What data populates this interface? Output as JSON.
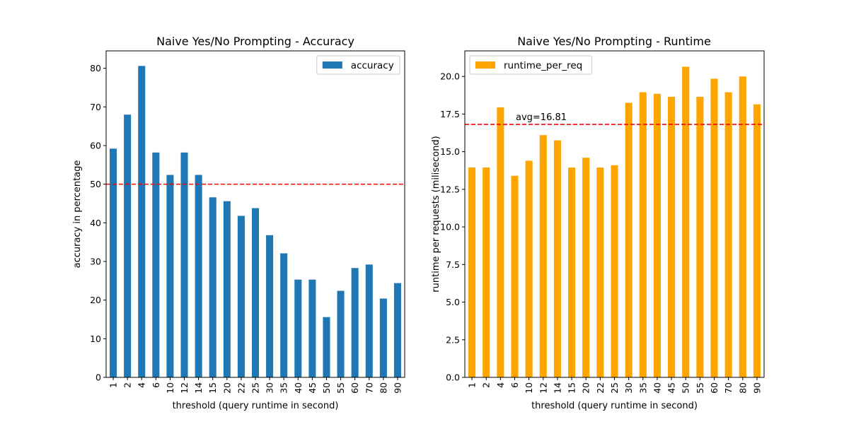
{
  "chart_data": [
    {
      "type": "bar",
      "title": "Naive Yes/No Prompting - Accuracy",
      "xlabel": "threshold (query runtime in second)",
      "ylabel": "accuracy in percentage",
      "categories": [
        "1",
        "2",
        "4",
        "6",
        "10",
        "12",
        "14",
        "15",
        "20",
        "22",
        "25",
        "30",
        "35",
        "40",
        "45",
        "50",
        "55",
        "60",
        "70",
        "80",
        "90"
      ],
      "series": [
        {
          "name": "accuracy",
          "color": "#1f77b4",
          "values": [
            59.2,
            68.0,
            80.6,
            58.2,
            52.4,
            58.2,
            52.4,
            46.6,
            45.6,
            41.8,
            43.8,
            36.8,
            32.1,
            25.3,
            25.3,
            15.6,
            22.4,
            28.3,
            29.2,
            20.4,
            24.4
          ]
        }
      ],
      "ylim": [
        0,
        84.5
      ],
      "yticks": [
        0,
        10,
        20,
        30,
        40,
        50,
        60,
        70,
        80
      ],
      "reference_line": {
        "value": 50,
        "color": "#ff0000",
        "style": "dashed",
        "label": ""
      },
      "legend_position": "upper right",
      "grid": false
    },
    {
      "type": "bar",
      "title": "Naive Yes/No Prompting - Runtime",
      "xlabel": "threshold (query runtime in second)",
      "ylabel": "runtime per requests (milisecond)",
      "categories": [
        "1",
        "2",
        "4",
        "6",
        "10",
        "12",
        "14",
        "15",
        "20",
        "22",
        "25",
        "30",
        "35",
        "40",
        "45",
        "50",
        "55",
        "60",
        "70",
        "80",
        "90"
      ],
      "series": [
        {
          "name": "runtime_per_req",
          "color": "#ffa500",
          "values": [
            13.95,
            13.95,
            17.95,
            13.4,
            14.4,
            16.1,
            15.75,
            13.95,
            14.6,
            13.95,
            14.1,
            18.25,
            18.95,
            18.85,
            18.65,
            20.65,
            18.65,
            19.85,
            18.95,
            20.0,
            18.15
          ]
        }
      ],
      "ylim": [
        0,
        21.7
      ],
      "yticks": [
        "0.0",
        "2.5",
        "5.0",
        "7.5",
        "10.0",
        "12.5",
        "15.0",
        "17.5",
        "20.0"
      ],
      "reference_line": {
        "value": 16.81,
        "color": "#ff0000",
        "style": "dashed",
        "label": "avg=16.81"
      },
      "legend_position": "upper left",
      "grid": false
    }
  ]
}
